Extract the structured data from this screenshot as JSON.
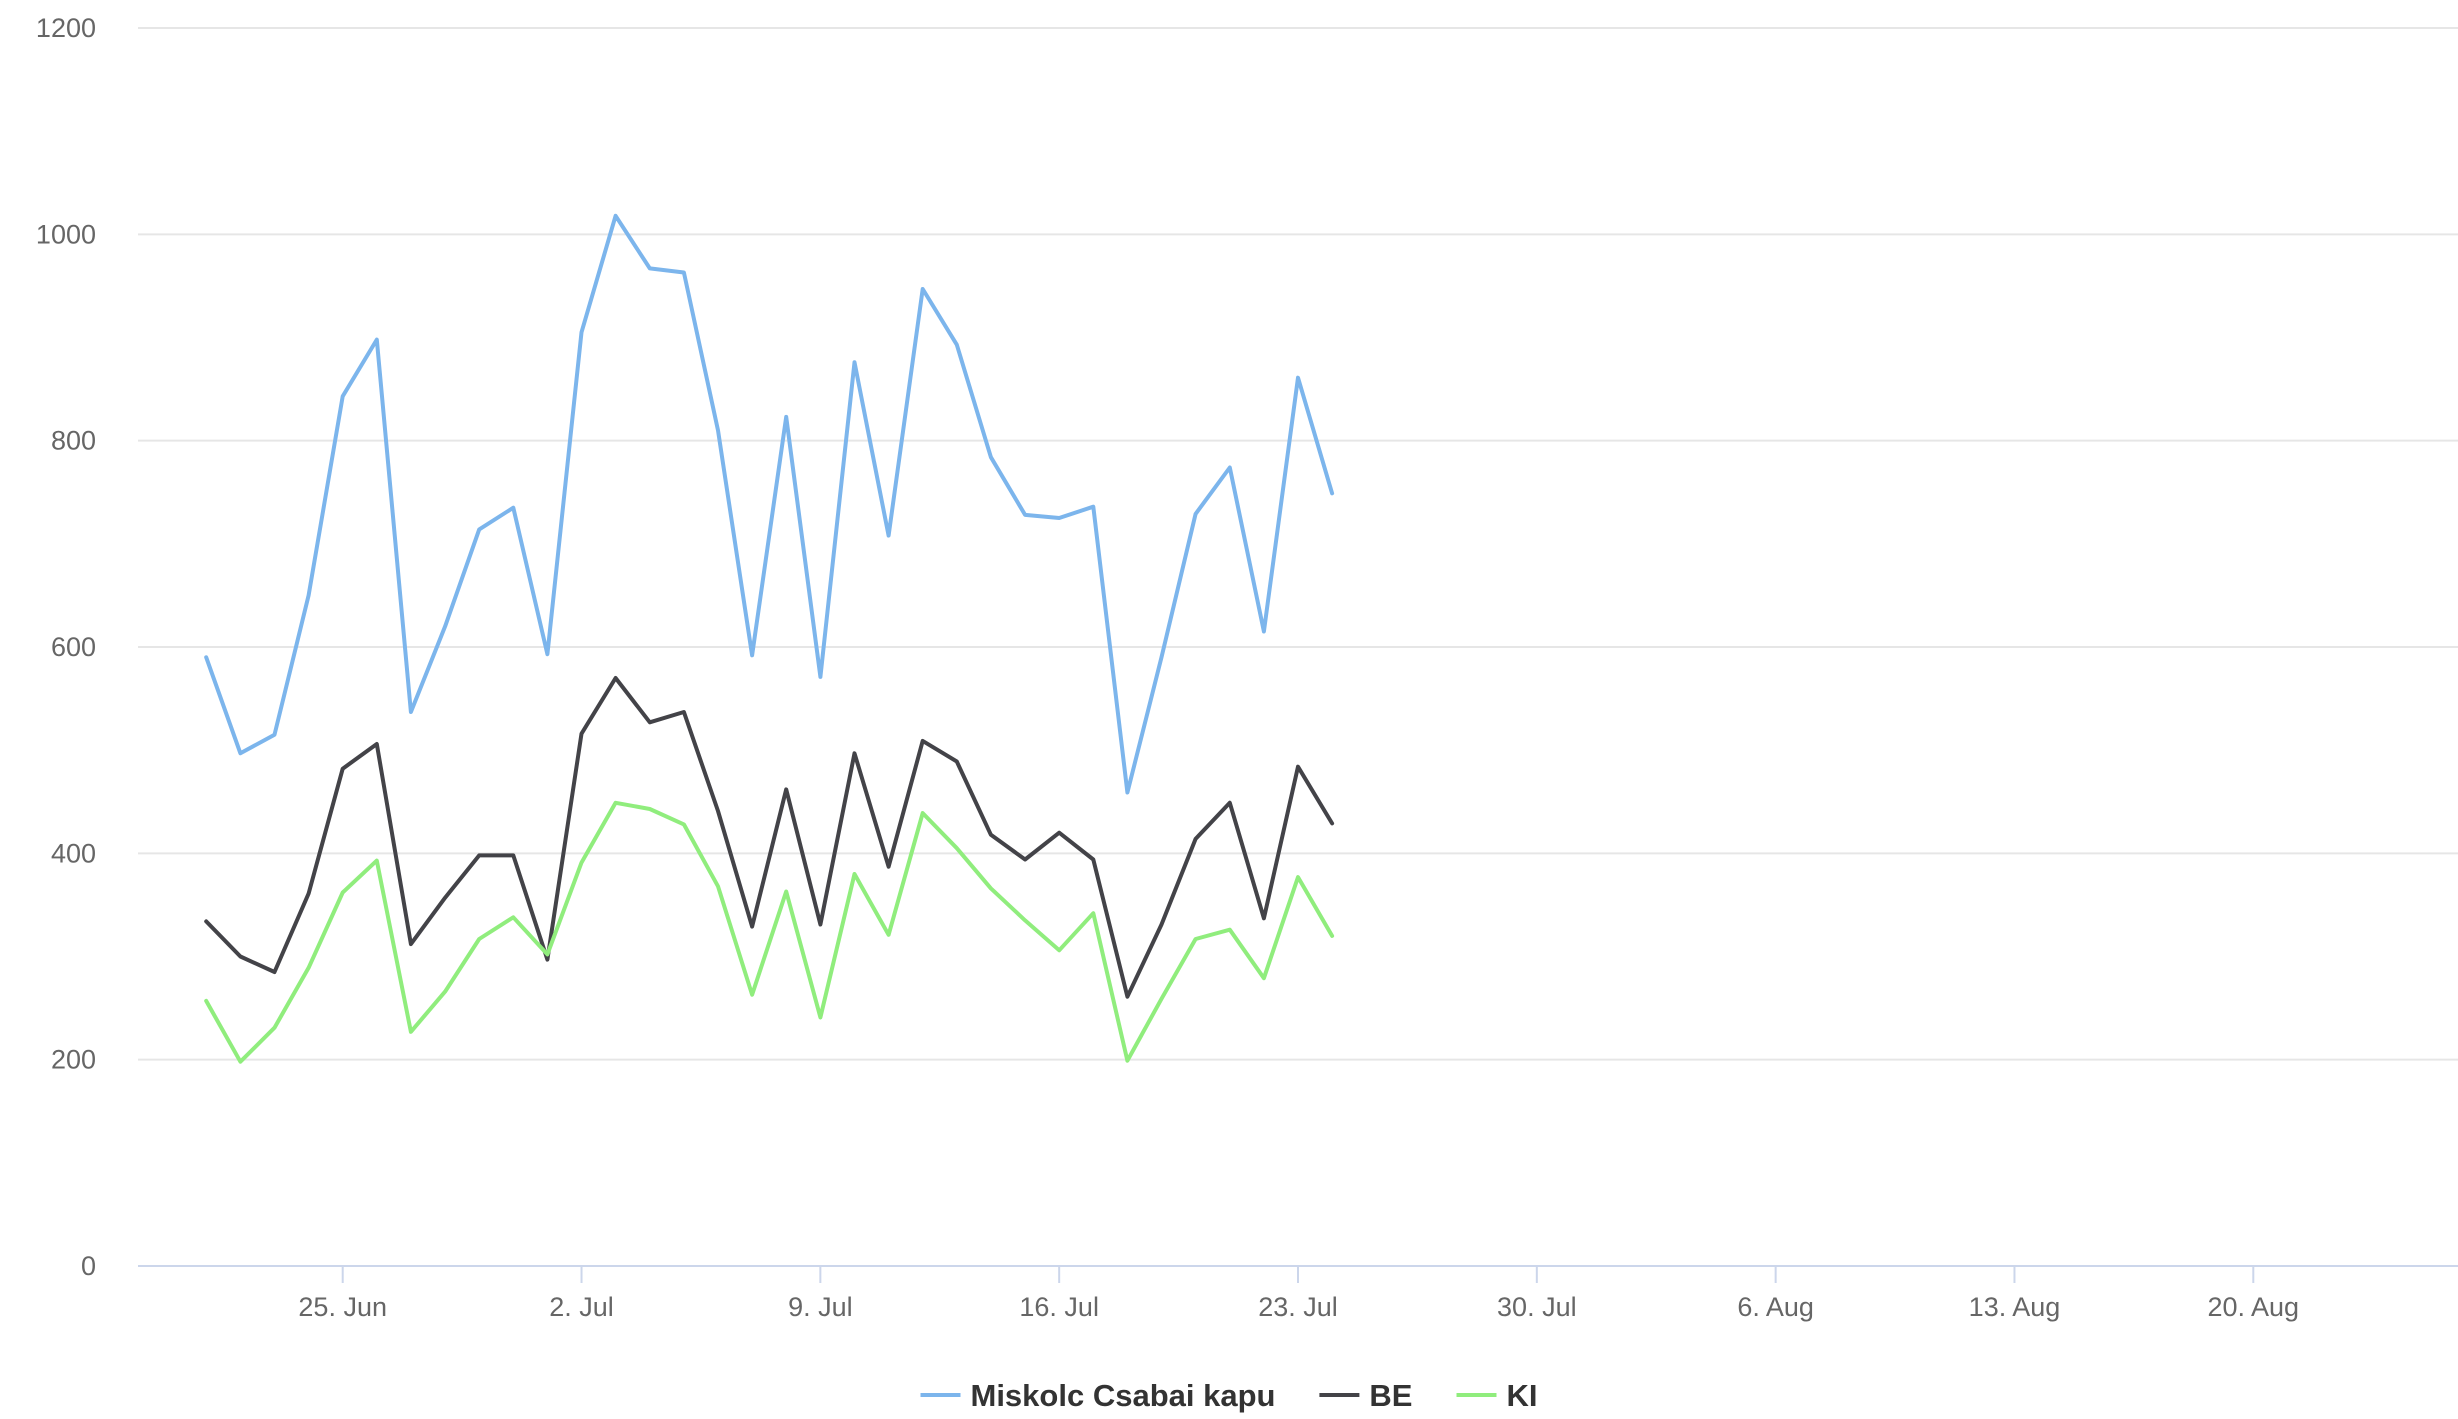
{
  "chart_data": {
    "type": "line",
    "x_start": "2023-06-21",
    "x_range": [
      "2023-06-19",
      "2023-08-26"
    ],
    "ylim": [
      0,
      1200
    ],
    "y_ticks": [
      0,
      200,
      400,
      600,
      800,
      1000,
      1200
    ],
    "x_ticks": [
      {
        "date": "2023-06-25",
        "label": "25. Jun"
      },
      {
        "date": "2023-07-02",
        "label": "2. Jul"
      },
      {
        "date": "2023-07-09",
        "label": "9. Jul"
      },
      {
        "date": "2023-07-16",
        "label": "16. Jul"
      },
      {
        "date": "2023-07-23",
        "label": "23. Jul"
      },
      {
        "date": "2023-07-30",
        "label": "30. Jul"
      },
      {
        "date": "2023-08-06",
        "label": "6. Aug"
      },
      {
        "date": "2023-08-13",
        "label": "13. Aug"
      },
      {
        "date": "2023-08-20",
        "label": "20. Aug"
      }
    ],
    "grid": "horizontal",
    "legend_position": "bottom-center",
    "series": [
      {
        "name": "Miskolc Csabai kapu",
        "color": "#7cb5ec",
        "values": [
          590,
          497,
          515,
          650,
          843,
          898,
          537,
          620,
          714,
          735,
          593,
          905,
          1018,
          967,
          963,
          810,
          592,
          823,
          571,
          876,
          708,
          947,
          893,
          784,
          728,
          725,
          736,
          459,
          590,
          729,
          774,
          615,
          861,
          749
        ]
      },
      {
        "name": "BE",
        "color": "#434348",
        "values": [
          334,
          300,
          285,
          361,
          482,
          506,
          312,
          357,
          398,
          398,
          297,
          516,
          570,
          527,
          537,
          441,
          329,
          462,
          331,
          497,
          387,
          509,
          489,
          418,
          394,
          420,
          394,
          261,
          331,
          414,
          449,
          337,
          484,
          429
        ]
      },
      {
        "name": "KI",
        "color": "#90ed7d",
        "values": [
          257,
          198,
          231,
          289,
          362,
          393,
          227,
          266,
          317,
          338,
          302,
          391,
          449,
          443,
          428,
          368,
          263,
          363,
          241,
          380,
          321,
          439,
          405,
          366,
          335,
          306,
          342,
          199,
          259,
          317,
          326,
          279,
          377,
          320
        ]
      }
    ]
  }
}
